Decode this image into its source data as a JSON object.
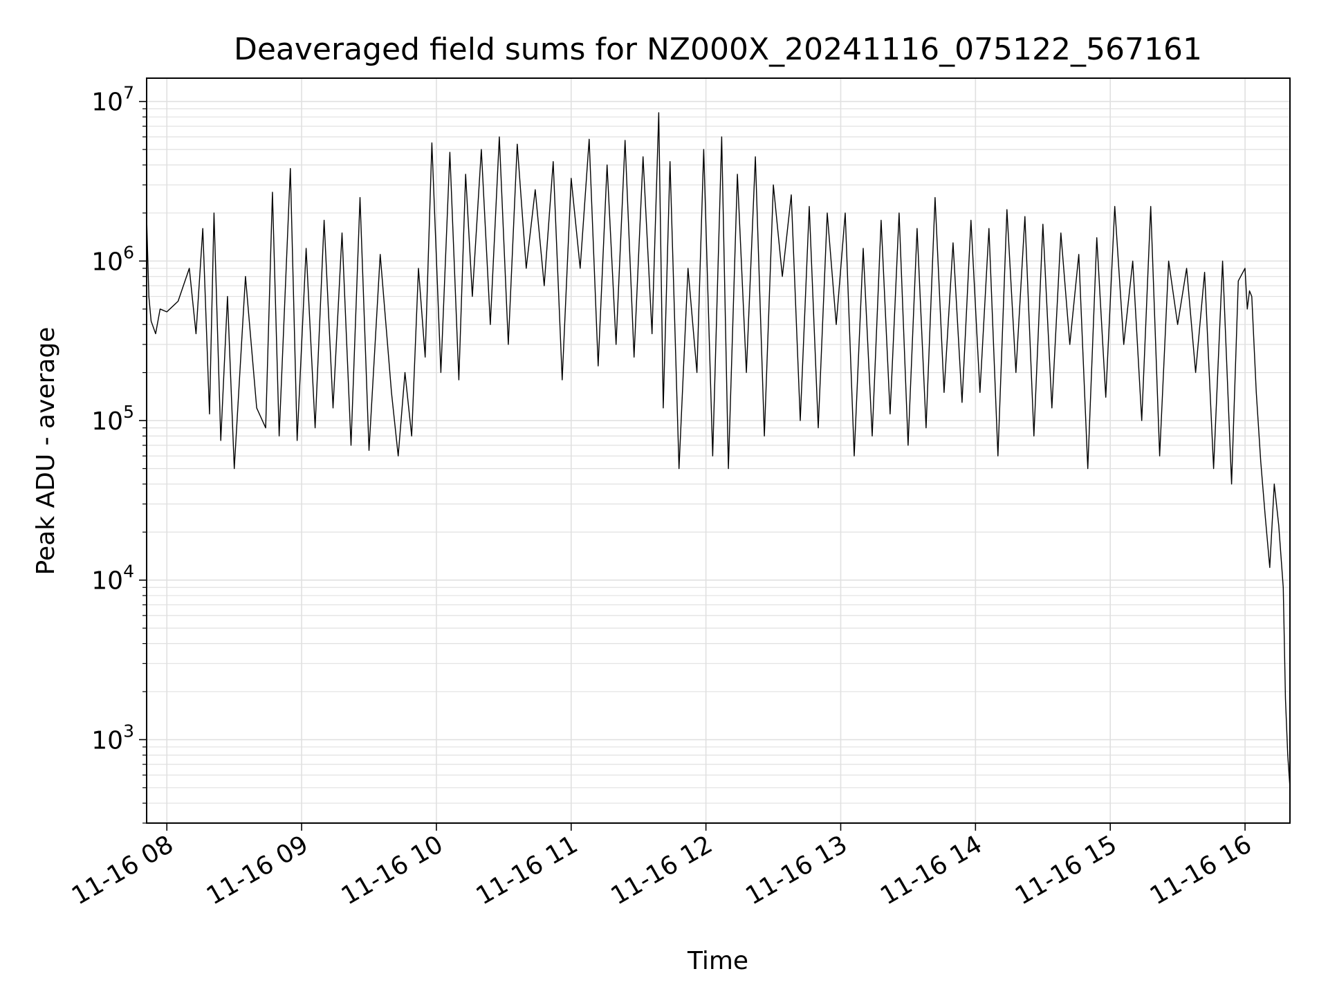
{
  "chart_data": {
    "type": "line",
    "title": "Deaveraged field sums for NZ000X_20241116_075122_567161",
    "xlabel": "Time",
    "ylabel": "Peak ADU - average",
    "y_scale": "log",
    "ylim": [
      300,
      14000000
    ],
    "xlim": [
      "2024-11-16 07:51",
      "2024-11-16 16:20"
    ],
    "grid": true,
    "grid_minor": true,
    "line_color": "#000000",
    "grid_color": "#e0e0e0",
    "x_ticks": [
      {
        "value": "2024-11-16 08:00",
        "label": "11-16 08"
      },
      {
        "value": "2024-11-16 09:00",
        "label": "11-16 09"
      },
      {
        "value": "2024-11-16 10:00",
        "label": "11-16 10"
      },
      {
        "value": "2024-11-16 11:00",
        "label": "11-16 11"
      },
      {
        "value": "2024-11-16 12:00",
        "label": "11-16 12"
      },
      {
        "value": "2024-11-16 13:00",
        "label": "11-16 13"
      },
      {
        "value": "2024-11-16 14:00",
        "label": "11-16 14"
      },
      {
        "value": "2024-11-16 15:00",
        "label": "11-16 15"
      },
      {
        "value": "2024-11-16 16:00",
        "label": "11-16 16"
      }
    ],
    "y_ticks": [
      {
        "value": 1000,
        "base": "10",
        "exp": "3"
      },
      {
        "value": 10000,
        "base": "10",
        "exp": "4"
      },
      {
        "value": 100000,
        "base": "10",
        "exp": "5"
      },
      {
        "value": 1000000,
        "base": "10",
        "exp": "6"
      },
      {
        "value": 10000000,
        "base": "10",
        "exp": "7"
      }
    ],
    "series": [
      {
        "x": [
          "2024-11-16 07:51",
          "2024-11-16 07:52",
          "2024-11-16 07:53",
          "2024-11-16 07:55",
          "2024-11-16 07:57",
          "2024-11-16 08:00",
          "2024-11-16 08:05",
          "2024-11-16 08:10",
          "2024-11-16 08:13",
          "2024-11-16 08:16",
          "2024-11-16 08:19",
          "2024-11-16 08:21",
          "2024-11-16 08:24",
          "2024-11-16 08:27",
          "2024-11-16 08:30",
          "2024-11-16 08:35",
          "2024-11-16 08:40",
          "2024-11-16 08:44",
          "2024-11-16 08:47",
          "2024-11-16 08:50",
          "2024-11-16 08:55",
          "2024-11-16 08:58",
          "2024-11-16 09:02",
          "2024-11-16 09:06",
          "2024-11-16 09:10",
          "2024-11-16 09:14",
          "2024-11-16 09:18",
          "2024-11-16 09:22",
          "2024-11-16 09:26",
          "2024-11-16 09:30",
          "2024-11-16 09:35",
          "2024-11-16 09:40",
          "2024-11-16 09:43",
          "2024-11-16 09:46",
          "2024-11-16 09:49",
          "2024-11-16 09:52",
          "2024-11-16 09:55",
          "2024-11-16 09:58",
          "2024-11-16 10:02",
          "2024-11-16 10:06",
          "2024-11-16 10:10",
          "2024-11-16 10:13",
          "2024-11-16 10:16",
          "2024-11-16 10:20",
          "2024-11-16 10:24",
          "2024-11-16 10:28",
          "2024-11-16 10:32",
          "2024-11-16 10:36",
          "2024-11-16 10:40",
          "2024-11-16 10:44",
          "2024-11-16 10:48",
          "2024-11-16 10:52",
          "2024-11-16 10:56",
          "2024-11-16 11:00",
          "2024-11-16 11:04",
          "2024-11-16 11:08",
          "2024-11-16 11:12",
          "2024-11-16 11:16",
          "2024-11-16 11:20",
          "2024-11-16 11:24",
          "2024-11-16 11:28",
          "2024-11-16 11:32",
          "2024-11-16 11:36",
          "2024-11-16 11:39",
          "2024-11-16 11:41",
          "2024-11-16 11:44",
          "2024-11-16 11:48",
          "2024-11-16 11:52",
          "2024-11-16 11:56",
          "2024-11-16 11:59",
          "2024-11-16 12:03",
          "2024-11-16 12:07",
          "2024-11-16 12:10",
          "2024-11-16 12:14",
          "2024-11-16 12:18",
          "2024-11-16 12:22",
          "2024-11-16 12:26",
          "2024-11-16 12:30",
          "2024-11-16 12:34",
          "2024-11-16 12:38",
          "2024-11-16 12:42",
          "2024-11-16 12:46",
          "2024-11-16 12:50",
          "2024-11-16 12:54",
          "2024-11-16 12:58",
          "2024-11-16 13:02",
          "2024-11-16 13:06",
          "2024-11-16 13:10",
          "2024-11-16 13:14",
          "2024-11-16 13:18",
          "2024-11-16 13:22",
          "2024-11-16 13:26",
          "2024-11-16 13:30",
          "2024-11-16 13:34",
          "2024-11-16 13:38",
          "2024-11-16 13:42",
          "2024-11-16 13:46",
          "2024-11-16 13:50",
          "2024-11-16 13:54",
          "2024-11-16 13:58",
          "2024-11-16 14:02",
          "2024-11-16 14:06",
          "2024-11-16 14:10",
          "2024-11-16 14:14",
          "2024-11-16 14:18",
          "2024-11-16 14:22",
          "2024-11-16 14:26",
          "2024-11-16 14:30",
          "2024-11-16 14:34",
          "2024-11-16 14:38",
          "2024-11-16 14:42",
          "2024-11-16 14:46",
          "2024-11-16 14:50",
          "2024-11-16 14:54",
          "2024-11-16 14:58",
          "2024-11-16 15:02",
          "2024-11-16 15:06",
          "2024-11-16 15:10",
          "2024-11-16 15:14",
          "2024-11-16 15:18",
          "2024-11-16 15:22",
          "2024-11-16 15:26",
          "2024-11-16 15:30",
          "2024-11-16 15:34",
          "2024-11-16 15:38",
          "2024-11-16 15:42",
          "2024-11-16 15:46",
          "2024-11-16 15:50",
          "2024-11-16 15:54",
          "2024-11-16 15:57",
          "2024-11-16 16:00",
          "2024-11-16 16:01",
          "2024-11-16 16:02",
          "2024-11-16 16:03",
          "2024-11-16 16:05",
          "2024-11-16 16:07",
          "2024-11-16 16:09",
          "2024-11-16 16:11",
          "2024-11-16 16:13",
          "2024-11-16 16:15",
          "2024-11-16 16:17",
          "2024-11-16 16:18",
          "2024-11-16 16:19",
          "2024-11-16 16:20"
        ],
        "y": [
          1900000,
          600000,
          420000,
          350000,
          500000,
          480000,
          560000,
          900000,
          350000,
          1600000,
          110000,
          2000000,
          75000,
          600000,
          50000,
          800000,
          120000,
          90000,
          2700000,
          80000,
          3800000,
          75000,
          1200000,
          90000,
          1800000,
          120000,
          1500000,
          70000,
          2500000,
          65000,
          1100000,
          150000,
          60000,
          200000,
          80000,
          900000,
          250000,
          5500000,
          200000,
          4800000,
          180000,
          3500000,
          600000,
          5000000,
          400000,
          6000000,
          300000,
          5400000,
          900000,
          2800000,
          700000,
          4200000,
          180000,
          3300000,
          900000,
          5800000,
          220000,
          4000000,
          300000,
          5700000,
          250000,
          4500000,
          350000,
          8500000,
          120000,
          4200000,
          50000,
          900000,
          200000,
          5000000,
          60000,
          6000000,
          50000,
          3500000,
          200000,
          4500000,
          80000,
          3000000,
          800000,
          2600000,
          100000,
          2200000,
          90000,
          2000000,
          400000,
          2000000,
          60000,
          1200000,
          80000,
          1800000,
          110000,
          2000000,
          70000,
          1600000,
          90000,
          2500000,
          150000,
          1300000,
          130000,
          1800000,
          150000,
          1600000,
          60000,
          2100000,
          200000,
          1900000,
          80000,
          1700000,
          120000,
          1500000,
          300000,
          1100000,
          50000,
          1400000,
          140000,
          2200000,
          300000,
          1000000,
          100000,
          2200000,
          60000,
          1000000,
          400000,
          900000,
          200000,
          850000,
          50000,
          1000000,
          40000,
          750000,
          900000,
          500000,
          650000,
          600000,
          150000,
          55000,
          25000,
          12000,
          40000,
          22000,
          9000,
          1800,
          800,
          500
        ]
      }
    ]
  }
}
